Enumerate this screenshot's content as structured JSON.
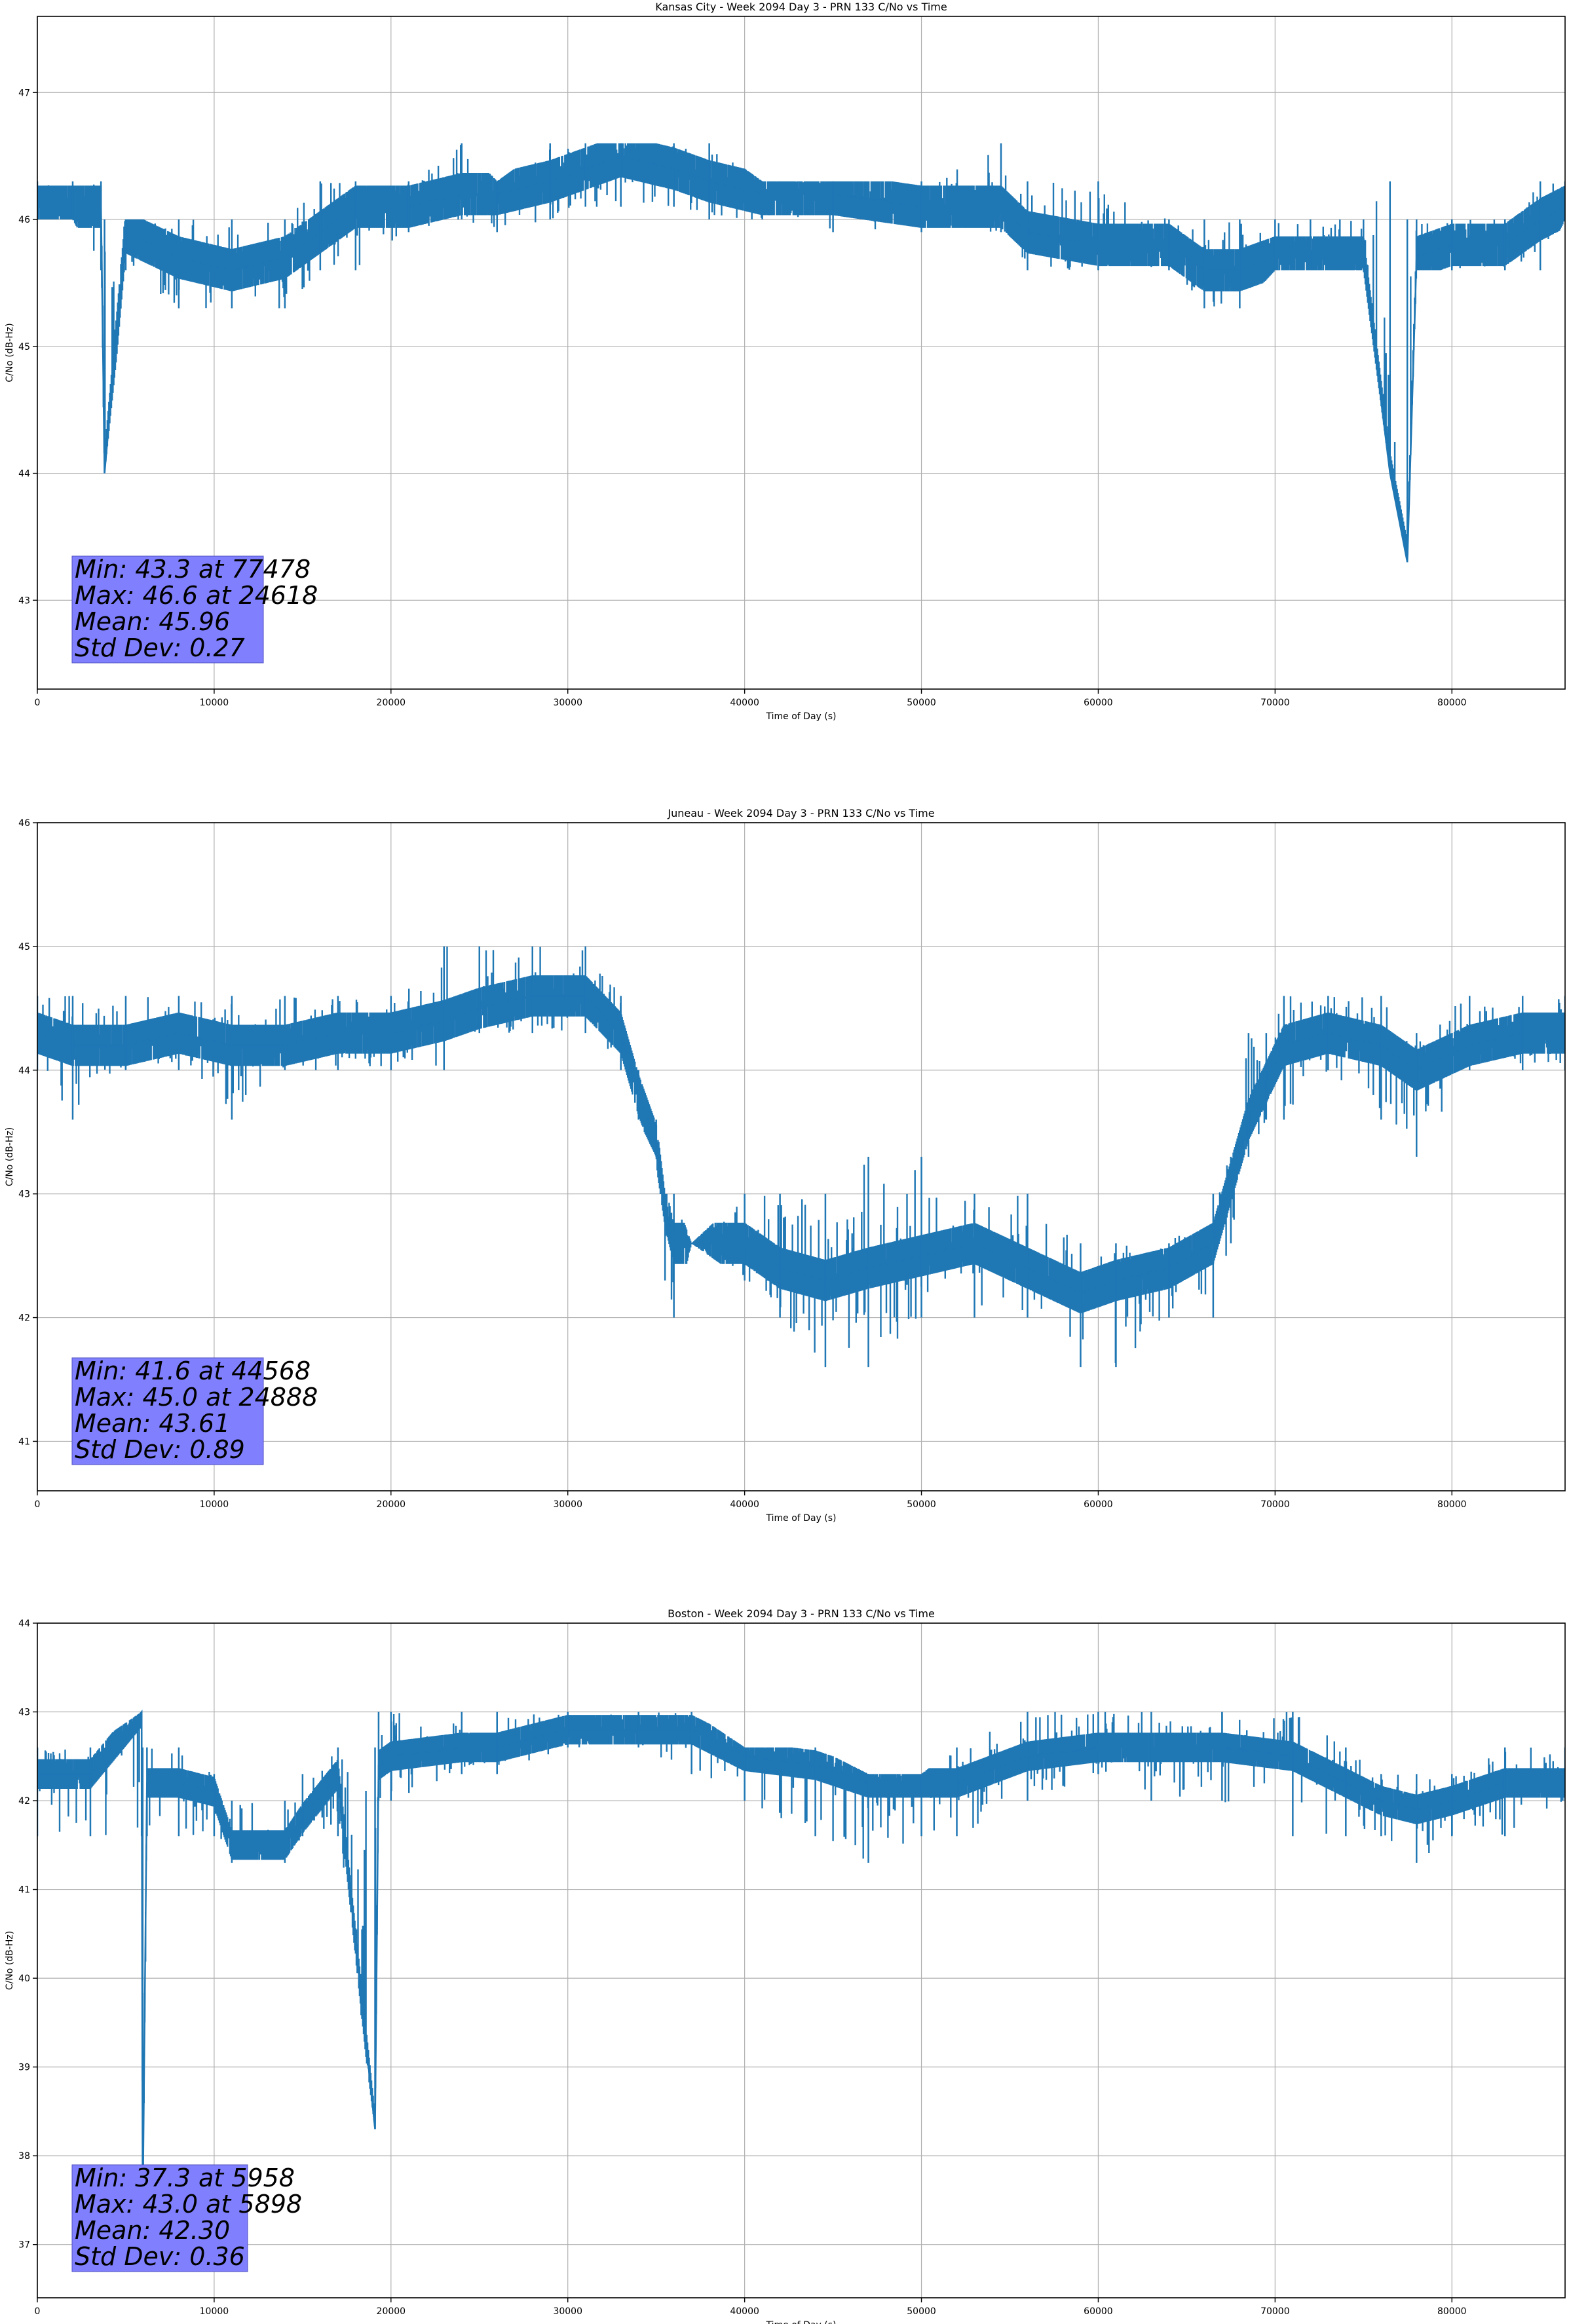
{
  "chart_data": [
    {
      "type": "line",
      "title": "Kansas City - Week 2094 Day 3 - PRN 133 C/No vs Time",
      "xlabel": "Time of Day (s)",
      "ylabel": "C/No (dB-Hz)",
      "xlim": [
        0,
        86400
      ],
      "ylim": [
        42.3,
        47.6
      ],
      "xticks": [
        0,
        10000,
        20000,
        30000,
        40000,
        50000,
        60000,
        70000,
        80000
      ],
      "yticks": [
        43,
        44,
        45,
        46,
        47
      ],
      "grid": true,
      "line_color": "#1f77b4",
      "stats_box": {
        "lines": [
          "Min: 43.3 at 77478",
          "Max: 46.6 at 24618",
          "Mean: 45.96",
          "Std Dev: 0.27"
        ],
        "background": "#8080ff"
      },
      "series": [
        {
          "x": [
            0,
            2000,
            3600,
            3800,
            5000,
            8000,
            11000,
            14000,
            16000,
            18000,
            21000,
            24000,
            26000,
            29000,
            31000,
            33000,
            36000,
            38000,
            41000,
            45000,
            50000,
            54500,
            56000,
            60000,
            64000,
            66000,
            68000,
            70000,
            72000,
            75000,
            76500,
            77478,
            78000,
            80000,
            83000,
            85000,
            86400
          ],
          "y": [
            46.1,
            46.1,
            46.1,
            44.0,
            45.9,
            45.7,
            45.6,
            45.7,
            45.9,
            46.1,
            46.1,
            46.2,
            46.2,
            46.3,
            46.4,
            46.5,
            46.4,
            46.3,
            46.2,
            46.2,
            46.1,
            46.1,
            45.9,
            45.8,
            45.8,
            45.6,
            45.6,
            45.7,
            45.7,
            45.7,
            44.0,
            43.3,
            45.7,
            45.8,
            45.8,
            46.0,
            46.1
          ],
          "band_low": [
            46.0,
            46.0,
            45.6,
            44.0,
            45.6,
            45.3,
            45.3,
            45.3,
            45.6,
            45.6,
            45.9,
            46.0,
            45.9,
            46.0,
            46.1,
            46.1,
            46.1,
            46.0,
            46.0,
            45.9,
            45.9,
            45.9,
            45.6,
            45.6,
            45.6,
            45.3,
            45.3,
            45.6,
            45.6,
            45.6,
            44.0,
            43.3,
            45.6,
            45.6,
            45.6,
            45.6,
            46.0
          ],
          "band_high": [
            46.3,
            46.3,
            46.3,
            46.0,
            46.0,
            46.0,
            46.0,
            46.0,
            46.3,
            46.3,
            46.3,
            46.6,
            46.3,
            46.6,
            46.6,
            46.6,
            46.6,
            46.6,
            46.3,
            46.3,
            46.3,
            46.6,
            46.3,
            46.3,
            46.0,
            46.0,
            46.0,
            46.0,
            46.0,
            46.0,
            46.3,
            46.0,
            46.0,
            46.0,
            46.0,
            46.3,
            46.3
          ]
        }
      ]
    },
    {
      "type": "line",
      "title": "Juneau - Week 2094 Day 3 - PRN 133 C/No vs Time",
      "xlabel": "Time of Day (s)",
      "ylabel": "C/No (dB-Hz)",
      "xlim": [
        0,
        86400
      ],
      "ylim": [
        40.6,
        46.0
      ],
      "xticks": [
        0,
        10000,
        20000,
        30000,
        40000,
        50000,
        60000,
        70000,
        80000
      ],
      "yticks": [
        41,
        42,
        43,
        44,
        45,
        46
      ],
      "grid": true,
      "line_color": "#1f77b4",
      "stats_box": {
        "lines": [
          "Min: 41.6 at 44568",
          "Max: 45.0 at 24888",
          "Mean: 43.61",
          "Std Dev: 0.89"
        ],
        "background": "#8080ff"
      },
      "series": [
        {
          "x": [
            0,
            2000,
            5000,
            8000,
            11000,
            14000,
            17000,
            20000,
            23000,
            25000,
            28000,
            31000,
            33000,
            34000,
            35000,
            35500,
            36000,
            37000,
            40000,
            42000,
            44568,
            47000,
            50000,
            53000,
            56000,
            59000,
            61000,
            64000,
            66500,
            67500,
            68500,
            69500,
            70500,
            73000,
            76000,
            78000,
            81000,
            84000,
            86400
          ],
          "y": [
            44.3,
            44.2,
            44.2,
            44.3,
            44.2,
            44.2,
            44.3,
            44.3,
            44.4,
            44.5,
            44.6,
            44.6,
            44.3,
            43.8,
            43.4,
            42.9,
            42.6,
            42.6,
            42.6,
            42.4,
            42.3,
            42.4,
            42.5,
            42.6,
            42.4,
            42.2,
            42.3,
            42.4,
            42.6,
            43.1,
            43.6,
            43.9,
            44.2,
            44.3,
            44.2,
            44.0,
            44.2,
            44.3,
            44.3
          ],
          "band_low": [
            44.0,
            43.6,
            44.0,
            44.0,
            43.6,
            44.0,
            44.0,
            44.0,
            44.0,
            44.3,
            44.3,
            44.3,
            44.0,
            43.6,
            43.3,
            42.3,
            42.0,
            42.6,
            42.3,
            42.0,
            41.6,
            41.6,
            42.0,
            42.0,
            42.0,
            41.6,
            41.6,
            42.0,
            42.0,
            42.6,
            43.3,
            43.6,
            43.6,
            44.0,
            43.6,
            43.3,
            44.0,
            44.0,
            44.0
          ],
          "band_high": [
            44.6,
            44.6,
            44.6,
            44.6,
            44.6,
            44.6,
            44.6,
            44.6,
            45.0,
            45.0,
            45.0,
            45.0,
            44.6,
            44.0,
            43.6,
            43.0,
            43.0,
            42.6,
            43.0,
            43.0,
            43.0,
            43.3,
            43.3,
            43.0,
            43.0,
            42.6,
            42.6,
            42.6,
            43.0,
            43.3,
            44.3,
            44.3,
            44.6,
            44.6,
            44.6,
            44.3,
            44.6,
            44.6,
            44.6
          ]
        }
      ]
    },
    {
      "type": "line",
      "title": "Boston - Week 2094 Day 3 - PRN 133 C/No vs Time",
      "xlabel": "Time of Day (s)",
      "ylabel": "C/No (dB-Hz)",
      "xlim": [
        0,
        86400
      ],
      "ylim": [
        36.4,
        44.0
      ],
      "xticks": [
        0,
        10000,
        20000,
        30000,
        40000,
        50000,
        60000,
        70000,
        80000
      ],
      "yticks": [
        37,
        38,
        39,
        40,
        41,
        42,
        43,
        44
      ],
      "grid": true,
      "line_color": "#1f77b4",
      "stats_box": {
        "lines": [
          "Min: 37.3 at 5958",
          "Max: 43.0 at 5898",
          "Mean: 42.30",
          "Std Dev: 0.36"
        ],
        "background": "#8080ff"
      },
      "series": [
        {
          "x": [
            0,
            3000,
            5898,
            5958,
            6200,
            8000,
            10000,
            11000,
            14000,
            15000,
            17000,
            19100,
            19300,
            20000,
            24000,
            26000,
            30000,
            34000,
            37000,
            40000,
            44000,
            47000,
            50000,
            52000,
            56000,
            60000,
            63000,
            67000,
            71000,
            74000,
            76000,
            78000,
            80000,
            83000,
            86400
          ],
          "y": [
            42.3,
            42.3,
            43.0,
            37.3,
            42.2,
            42.2,
            42.1,
            41.5,
            41.5,
            41.8,
            42.3,
            38.3,
            42.4,
            42.5,
            42.6,
            42.6,
            42.8,
            42.8,
            42.8,
            42.5,
            42.4,
            42.2,
            42.2,
            42.2,
            42.5,
            42.6,
            42.6,
            42.6,
            42.5,
            42.2,
            42.0,
            41.9,
            42.0,
            42.2,
            42.2
          ],
          "band_low": [
            41.6,
            41.6,
            41.6,
            37.3,
            41.6,
            41.6,
            41.6,
            41.3,
            41.3,
            41.6,
            41.6,
            38.3,
            42.0,
            42.0,
            42.3,
            42.3,
            42.6,
            42.6,
            42.3,
            42.0,
            41.6,
            41.3,
            41.6,
            41.6,
            42.0,
            42.3,
            42.0,
            42.0,
            41.6,
            41.6,
            41.6,
            41.3,
            41.6,
            41.6,
            42.0
          ],
          "band_high": [
            42.6,
            42.6,
            43.0,
            42.6,
            42.6,
            42.6,
            42.3,
            42.0,
            42.0,
            42.3,
            42.6,
            42.6,
            43.0,
            43.0,
            43.0,
            43.0,
            43.0,
            43.0,
            43.0,
            42.6,
            42.6,
            42.3,
            42.3,
            42.6,
            43.0,
            43.0,
            43.0,
            43.0,
            43.0,
            42.6,
            42.3,
            42.3,
            42.3,
            42.6,
            42.6
          ]
        }
      ]
    }
  ]
}
